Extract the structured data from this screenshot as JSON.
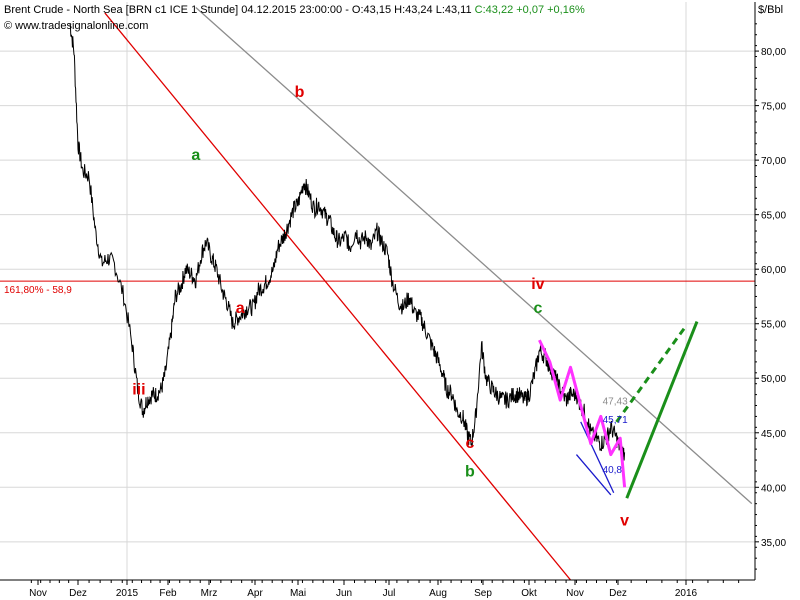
{
  "header": {
    "instrument": "Brent Crude - North Sea [BRN c1 ICE  1 Stunde] 04.12.2015 23:00:00 - O:43,15 H:43,24 L:43,11",
    "change": "C:43,22 +0,07 +0,16%",
    "source": "© www.tradesignalonline.com",
    "unit": "$/Bbl"
  },
  "colors": {
    "price": "#000000",
    "red_channel": "#e00000",
    "gray_channel": "#8c8c8c",
    "fib_line": "#e00000",
    "magenta_wave": "#ff33ff",
    "blue_wedge": "#1a1acc",
    "green_projection": "#1a8f1a",
    "grid": "#d8d8d8"
  },
  "chart_data": {
    "type": "line",
    "title": "Brent Crude - North Sea [BRN c1 ICE  1 Stunde]",
    "ylabel": "$/Bbl",
    "ylim": [
      31.5,
      84.5
    ],
    "x_tick_labels": [
      "Nov",
      "Dez",
      "2015",
      "Feb",
      "Mrz",
      "Apr",
      "Mai",
      "Jun",
      "Jul",
      "Aug",
      "Sep",
      "Okt",
      "Nov",
      "Dez",
      "2016"
    ],
    "y_ticks": [
      35,
      40,
      45,
      50,
      55,
      60,
      65,
      70,
      75,
      80
    ],
    "y_tick_labels": [
      "35,00",
      "40,00",
      "45,00",
      "50,00",
      "55,00",
      "60,00",
      "65,00",
      "70,00",
      "75,00",
      "80,00"
    ],
    "grid": true,
    "series": [
      {
        "style": "price",
        "x": [
          "2014-11-25",
          "2014-11-28",
          "2014-12-01",
          "2014-12-04",
          "2014-12-08",
          "2014-12-12",
          "2014-12-16",
          "2014-12-20",
          "2014-12-24",
          "2014-12-30",
          "2015-01-05",
          "2015-01-09",
          "2015-01-13",
          "2015-01-16",
          "2015-01-20",
          "2015-01-23",
          "2015-01-27",
          "2015-01-30",
          "2015-02-03",
          "2015-02-06",
          "2015-02-10",
          "2015-02-13",
          "2015-02-17",
          "2015-02-20",
          "2015-02-24",
          "2015-02-27",
          "2015-03-03",
          "2015-03-06",
          "2015-03-10",
          "2015-03-13",
          "2015-03-17",
          "2015-03-20",
          "2015-03-24",
          "2015-03-27",
          "2015-03-31",
          "2015-04-03",
          "2015-04-07",
          "2015-04-10",
          "2015-04-14",
          "2015-04-17",
          "2015-04-21",
          "2015-04-24",
          "2015-04-28",
          "2015-05-01",
          "2015-05-05",
          "2015-05-08",
          "2015-05-12",
          "2015-05-15",
          "2015-05-19",
          "2015-05-22",
          "2015-05-26",
          "2015-05-29",
          "2015-06-02",
          "2015-06-05",
          "2015-06-09",
          "2015-06-12",
          "2015-06-16",
          "2015-06-19",
          "2015-06-23",
          "2015-06-26",
          "2015-06-30",
          "2015-07-03",
          "2015-07-07",
          "2015-07-10",
          "2015-07-14",
          "2015-07-17",
          "2015-07-21",
          "2015-07-24",
          "2015-07-28",
          "2015-07-31",
          "2015-08-04",
          "2015-08-07",
          "2015-08-11",
          "2015-08-14",
          "2015-08-18",
          "2015-08-21",
          "2015-08-24",
          "2015-08-27",
          "2015-08-31",
          "2015-09-03",
          "2015-09-07",
          "2015-09-10",
          "2015-09-14",
          "2015-09-17",
          "2015-09-21",
          "2015-09-24",
          "2015-09-28",
          "2015-10-01",
          "2015-10-05",
          "2015-10-08",
          "2015-10-12",
          "2015-10-15",
          "2015-10-19",
          "2015-10-22",
          "2015-10-26",
          "2015-10-29",
          "2015-11-02",
          "2015-11-05",
          "2015-11-09",
          "2015-11-12",
          "2015-11-16",
          "2015-11-19",
          "2015-11-23",
          "2015-11-26",
          "2015-11-30",
          "2015-12-02",
          "2015-12-04"
        ],
        "values": [
          82.5,
          80.0,
          71.5,
          69.0,
          68.5,
          63.5,
          60.5,
          61.0,
          60.5,
          57.5,
          53.0,
          49.0,
          47.0,
          48.0,
          48.5,
          48.5,
          49.0,
          50.5,
          54.0,
          57.5,
          58.5,
          60.0,
          59.5,
          59.0,
          61.5,
          62.5,
          61.0,
          60.0,
          58.0,
          57.0,
          55.0,
          55.5,
          56.0,
          56.5,
          56.5,
          58.0,
          58.5,
          59.0,
          60.0,
          62.0,
          63.0,
          64.0,
          65.5,
          66.0,
          68.0,
          67.0,
          65.5,
          66.0,
          65.0,
          64.5,
          63.0,
          62.5,
          63.0,
          62.0,
          63.5,
          62.5,
          63.0,
          62.0,
          63.5,
          62.5,
          61.5,
          59.0,
          57.0,
          56.5,
          57.5,
          56.0,
          55.5,
          54.5,
          53.0,
          52.0,
          50.5,
          49.0,
          48.5,
          47.0,
          46.5,
          45.0,
          44.0,
          46.5,
          53.0,
          50.0,
          49.0,
          48.5,
          48.0,
          48.0,
          48.5,
          48.5,
          48.0,
          48.5,
          50.5,
          52.5,
          52.0,
          51.0,
          50.0,
          49.0,
          48.0,
          48.5,
          48.5,
          47.5,
          46.5,
          45.0,
          44.5,
          44.0,
          44.5,
          45.5,
          44.5,
          43.5,
          43.2
        ]
      },
      {
        "style": "magenta-wave",
        "x": [
          "2015-10-08",
          "2015-10-15",
          "2015-10-22",
          "2015-10-29",
          "2015-11-05",
          "2015-11-12",
          "2015-11-19",
          "2015-11-26",
          "2015-12-02",
          "2015-12-04"
        ],
        "values": [
          53.5,
          51.5,
          48.0,
          51.0,
          47.5,
          44.0,
          46.5,
          43.0,
          44.5,
          40.0
        ]
      }
    ],
    "lines": [
      {
        "name": "red-channel",
        "x1": "2014-12-18",
        "y1": 83.5,
        "x2": "2015-10-29",
        "y2": 31.5
      },
      {
        "name": "gray-channel",
        "x1": "2015-02-20",
        "y1": 84.0,
        "x2": "2016-01-31",
        "y2": 38.5
      },
      {
        "name": "blue-wedge-lower",
        "x1": "2015-11-02",
        "y1": 43.0,
        "x2": "2015-11-26",
        "y2": 39.3
      },
      {
        "name": "blue-wedge-upper",
        "x1": "2015-11-05",
        "y1": 46.0,
        "x2": "2015-11-28",
        "y2": 39.5
      },
      {
        "name": "green-projection-solid",
        "x1": "2015-12-05",
        "y1": 39.0,
        "x2": "2016-01-06",
        "y2": 55.2
      },
      {
        "name": "green-projection-dashed",
        "x1": "2015-11-30",
        "y1": 46.0,
        "x2": "2016-01-01",
        "y2": 54.8
      }
    ],
    "hlines": [
      {
        "label": "161,80% - 58,9",
        "value": 58.9
      }
    ],
    "annotations": [
      {
        "text": "iii",
        "x": "2015-01-10",
        "y": 48.5,
        "color": "red"
      },
      {
        "text": "a",
        "x": "2015-02-20",
        "y": 70.0,
        "color": "green"
      },
      {
        "text": "a",
        "x": "2015-03-22",
        "y": 56.0,
        "color": "red"
      },
      {
        "text": "b",
        "x": "2015-05-02",
        "y": 75.8,
        "color": "red"
      },
      {
        "text": "iv",
        "x": "2015-10-07",
        "y": 58.2,
        "color": "red"
      },
      {
        "text": "c",
        "x": "2015-10-07",
        "y": 56.0,
        "color": "green"
      },
      {
        "text": "c",
        "x": "2015-08-23",
        "y": 43.6,
        "color": "red"
      },
      {
        "text": "b",
        "x": "2015-08-23",
        "y": 41.0,
        "color": "green"
      },
      {
        "text": "v",
        "x": "2015-12-04",
        "y": 36.5,
        "color": "red"
      },
      {
        "text": "47,43",
        "x": "2015-11-29",
        "y": 47.6,
        "color": "gray"
      },
      {
        "text": "45,71",
        "x": "2015-11-29",
        "y": 45.9,
        "color": "blue"
      },
      {
        "text": "40,8",
        "x": "2015-11-27",
        "y": 41.3,
        "color": "blue"
      }
    ]
  }
}
